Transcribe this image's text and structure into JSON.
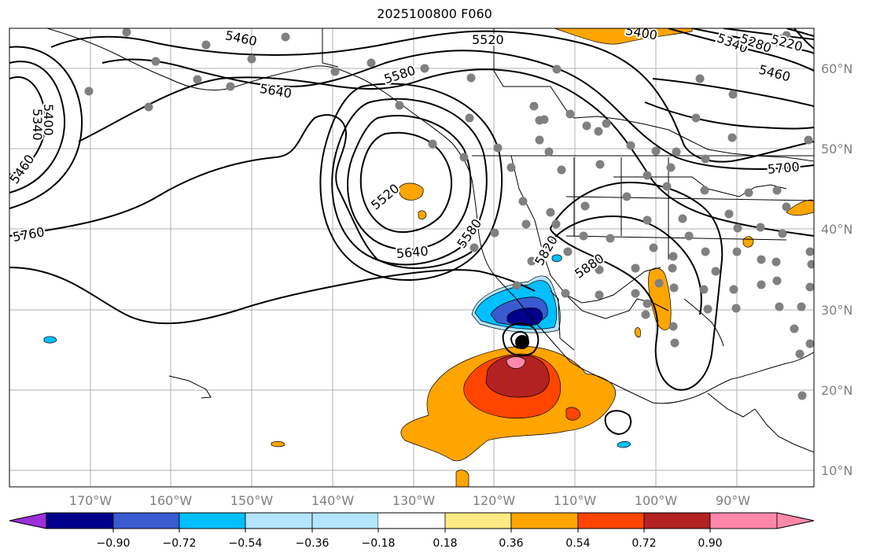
{
  "title": "2025100800 F060",
  "lon_labels": [
    "170°W",
    "160°W",
    "150°W",
    "140°W",
    "130°W",
    "120°W",
    "110°W",
    "100°W",
    "90°W"
  ],
  "lat_labels": [
    "60°N",
    "50°N",
    "40°N",
    "30°N",
    "20°N",
    "10°N"
  ],
  "colorbar": {
    "ticks": [
      "−0.90",
      "−0.72",
      "−0.54",
      "−0.36",
      "−0.18",
      "0.18",
      "0.36",
      "0.54",
      "0.72",
      "0.90"
    ],
    "colors": [
      "#9b30d9",
      "#00008b",
      "#3a5bd0",
      "#00bfff",
      "#b3e5fc",
      "#ffffff",
      "#ffea85",
      "#ffa500",
      "#ff4500",
      "#b22222",
      "#ff88aa"
    ]
  },
  "contour_labels": [
    "5460",
    "5400",
    "5340",
    "5460",
    "5520",
    "5580",
    "5640",
    "5760",
    "5520",
    "5580",
    "5640",
    "5820",
    "5880",
    "5400",
    "5340",
    "5280",
    "5220",
    "5460",
    "5700"
  ],
  "colors": {
    "fill_blue_dark": "#00008b",
    "fill_blue": "#00bfff",
    "fill_orange": "#ffa500",
    "fill_red": "#b22222",
    "station_dot": "#808080"
  }
}
